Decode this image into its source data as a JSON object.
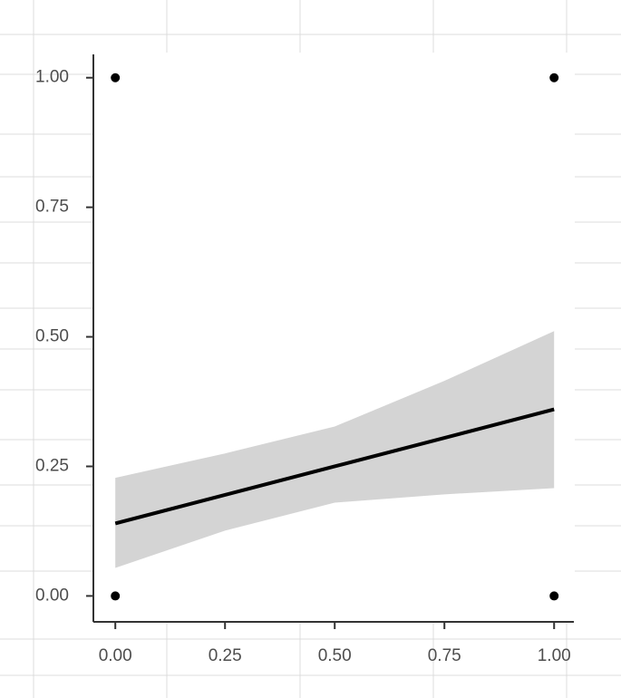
{
  "chart_data": {
    "type": "scatter",
    "points": {
      "x": [
        0,
        1,
        0,
        1
      ],
      "y": [
        1,
        1,
        0,
        0
      ],
      "color": "#000000"
    },
    "fit": {
      "x": [
        0,
        0.25,
        0.5,
        0.75,
        1
      ],
      "values": [
        0.14,
        0.195,
        0.25,
        0.305,
        0.36
      ],
      "lower": [
        0.054,
        0.126,
        0.18,
        0.196,
        0.208
      ],
      "upper": [
        0.228,
        0.275,
        0.327,
        0.415,
        0.511
      ],
      "color": "#000000",
      "band_color": "#d4d4d4"
    },
    "xlim": [
      -0.05,
      1.045
    ],
    "ylim": [
      -0.05,
      1.045
    ],
    "xticks": [
      {
        "value": 0,
        "label": "0.00"
      },
      {
        "value": 0.25,
        "label": "0.25"
      },
      {
        "value": 0.5,
        "label": "0.50"
      },
      {
        "value": 0.75,
        "label": "0.75"
      },
      {
        "value": 1,
        "label": "1.00"
      }
    ],
    "yticks": [
      {
        "value": 0,
        "label": "0.00"
      },
      {
        "value": 0.25,
        "label": "0.25"
      },
      {
        "value": 0.5,
        "label": "0.50"
      },
      {
        "value": 0.75,
        "label": "0.75"
      },
      {
        "value": 1,
        "label": "1.00"
      }
    ],
    "grid": false
  }
}
